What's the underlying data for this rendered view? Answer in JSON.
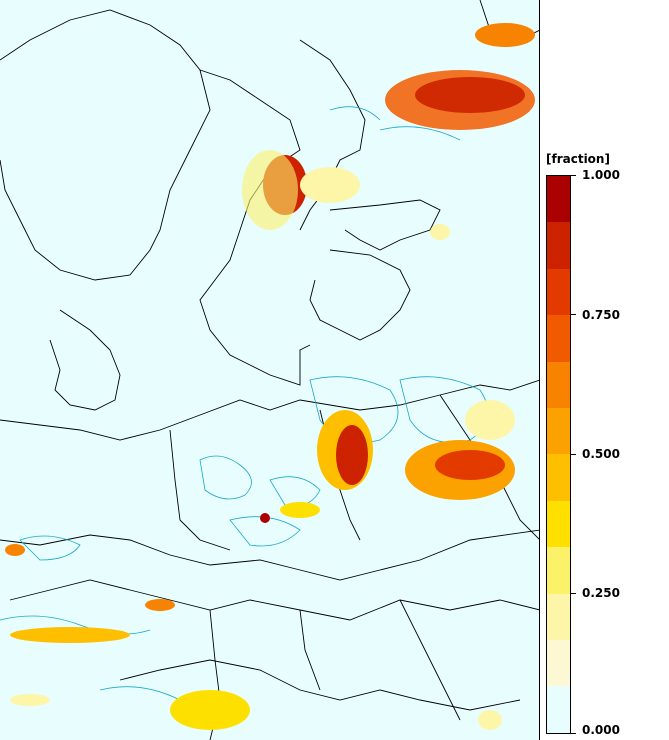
{
  "legend": {
    "title": "[fraction]",
    "ticks": [
      "1.000",
      "0.750",
      "0.500",
      "0.250",
      "0.000"
    ],
    "tick_values": [
      1.0,
      0.75,
      0.5,
      0.25,
      0.0
    ],
    "colors": [
      "#aa0000",
      "#cc2200",
      "#e33a00",
      "#f25a00",
      "#f78300",
      "#fba100",
      "#fdbf00",
      "#fde000",
      "#fbf26a",
      "#fdf6a8",
      "#fdf8d4",
      "#e8fdfd"
    ]
  },
  "map": {
    "background_color": "#e8fdfd",
    "coastline_color": "#000000",
    "contour_color": "#1aa8c8"
  }
}
